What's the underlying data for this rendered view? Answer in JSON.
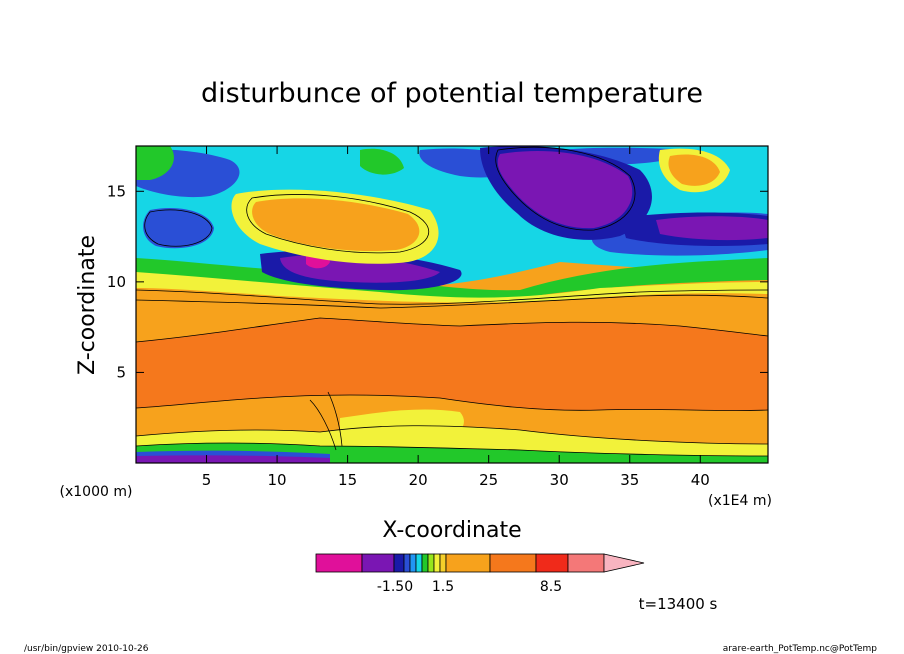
{
  "chart_data": {
    "type": "heatmap",
    "title": "disturbunce of potential temperature",
    "xlabel": "X-coordinate",
    "ylabel": "Z-coordinate",
    "x_unit_left": "(x1000 m)",
    "x_unit_right": "(x1E4 m)",
    "xlim": [
      0,
      44.8
    ],
    "ylim": [
      0,
      17.5
    ],
    "xticks": [
      5,
      10,
      15,
      20,
      25,
      30,
      35,
      40
    ],
    "yticks": [
      5,
      10,
      15
    ],
    "time_label": "t=13400 s",
    "colorbar": {
      "labels": [
        {
          "text": "-1.50",
          "level": -1.5
        },
        {
          "text": "1.5",
          "level": 1.5
        },
        {
          "text": "8.5",
          "level": 8.5
        }
      ],
      "colors": [
        "#e0109a",
        "#7a16b3",
        "#1a1aa8",
        "#2a4fd6",
        "#2196f3",
        "#16d6e6",
        "#22c82a",
        "#96e61c",
        "#f2f23a",
        "#f5cf2a",
        "#f7a21c",
        "#f5781c",
        "#f02a1a",
        "#f47878",
        "#f8b4c0"
      ]
    },
    "colors": {
      "deep_violet": "#7a16b3",
      "navy": "#1a1aa8",
      "blue": "#2a4fd6",
      "cyan": "#16d6e6",
      "green": "#22c82a",
      "lime": "#96e61c",
      "yellow": "#f2f23a",
      "gold": "#f5cf2a",
      "orange": "#f7a21c",
      "dark_orange": "#f5781c",
      "magenta": "#e0109a"
    }
  },
  "footer": {
    "left": "/usr/bin/gpview   2010-10-26",
    "right": "arare-earth_PotTemp.nc@PotTemp"
  }
}
